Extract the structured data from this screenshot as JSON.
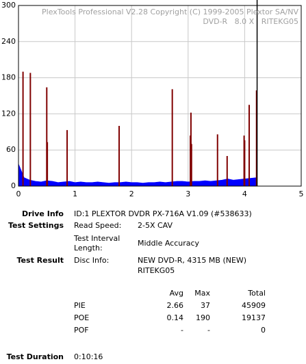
{
  "chart_data": {
    "type": "disc-scan",
    "header": "PlexTools Professional V2.28 Copyright (C) 1999-2005 Plextor SA/NV",
    "subheader": "DVD-R   8.0 X   RITEKG05",
    "xlim": [
      0,
      5
    ],
    "xticks": [
      0,
      1,
      2,
      3,
      4,
      5
    ],
    "ylim": [
      0,
      300
    ],
    "yticks": [
      0,
      60,
      120,
      180,
      240,
      300
    ],
    "grid": true,
    "series": [
      {
        "style": "area",
        "color": "#0000ff",
        "x": [
          0,
          0.1,
          0.2,
          0.3,
          0.4,
          0.5,
          0.6,
          0.7,
          0.8,
          0.9,
          1,
          1.1,
          1.2,
          1.3,
          1.4,
          1.5,
          1.6,
          1.7,
          1.8,
          1.9,
          2,
          2.1,
          2.2,
          2.3,
          2.4,
          2.5,
          2.6,
          2.7,
          2.8,
          2.9,
          3,
          3.1,
          3.2,
          3.3,
          3.4,
          3.5,
          3.6,
          3.7,
          3.8,
          3.9,
          4,
          4.1,
          4.2
        ],
        "values": [
          37,
          14,
          10,
          8,
          7,
          9,
          8,
          6,
          7,
          8,
          6,
          7,
          6,
          6,
          7,
          6,
          5,
          6,
          6,
          7,
          6,
          6,
          5,
          6,
          6,
          7,
          6,
          7,
          8,
          8,
          7,
          8,
          8,
          9,
          8,
          9,
          10,
          12,
          10,
          11,
          12,
          13,
          14
        ]
      },
      {
        "style": "spikes",
        "color": "#800000",
        "x": [
          0.08,
          0.21,
          0.5,
          0.51,
          0.86,
          1.78,
          2.72,
          3.04,
          3.05,
          3.06,
          3.52,
          3.69,
          3.99,
          4.0,
          4.08,
          4.21
        ],
        "values": [
          190,
          188,
          164,
          73,
          93,
          100,
          161,
          84,
          122,
          70,
          86,
          50,
          84,
          76,
          135,
          159
        ]
      }
    ],
    "end_line": {
      "x": 4.22,
      "color": "#000000"
    }
  },
  "report": {
    "drive_info": {
      "label": "Drive Info",
      "value": "ID:1 PLEXTOR DVDR PX-716A V1.09 (#538633)"
    },
    "test_settings": {
      "label": "Test Settings",
      "read_speed_label": "Read Speed:",
      "read_speed": "2-5X CAV",
      "interval_label_1": "Test Interval",
      "interval_label_2": "Length:",
      "interval": "Middle Accuracy"
    },
    "test_result": {
      "label": "Test Result",
      "disc_info_label": "Disc Info:",
      "disc_info_1": "NEW DVD-R, 4315 MB (NEW)",
      "disc_info_2": "RITEKG05"
    },
    "stats": {
      "header": [
        "Avg",
        "Max",
        "Total"
      ],
      "rows": [
        [
          "PIE",
          2.66,
          37,
          45909
        ],
        [
          "POE",
          0.14,
          190,
          19137
        ],
        [
          "POF",
          "-",
          "-",
          0
        ]
      ]
    },
    "duration": {
      "label": "Test Duration",
      "value": "0:10:16"
    }
  }
}
